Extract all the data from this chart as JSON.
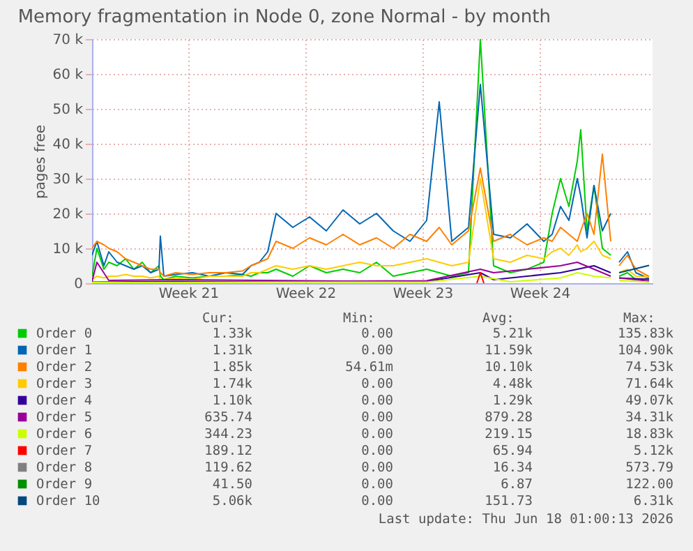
{
  "chart_data": {
    "type": "line",
    "title": "Memory fragmentation in Node 0, zone Normal - by month",
    "ylabel": "pages free",
    "x": [
      "2026-05-15T18:00",
      "2026-05-16T01:00",
      "2026-05-16T11:00",
      "2026-05-16T18:00",
      "2026-05-17T06:00",
      "2026-05-17T18:00",
      "2026-05-18T06:00",
      "2026-05-18T18:00",
      "2026-05-19T06:00",
      "2026-05-19T18:00",
      "2026-05-19T20:00",
      "2026-05-20T01:00",
      "2026-05-20T18:00",
      "2026-05-21T18:00",
      "2026-05-22T18:00",
      "2026-05-23T18:00",
      "2026-05-24T18:00",
      "2026-05-25T06:00",
      "2026-05-25T18:00",
      "2026-05-26T06:00",
      "2026-05-26T18:00",
      "2026-05-27T18:00",
      "2026-05-28T18:00",
      "2026-05-29T18:00",
      "2026-05-30T18:00",
      "2026-05-31T18:00",
      "2026-06-01T18:00",
      "2026-06-02T18:00",
      "2026-06-03T18:00",
      "2026-06-04T18:00",
      "2026-06-05T12:00",
      "2026-06-06T06:00",
      "2026-06-07T06:00",
      "2026-06-07T23:00",
      "2026-06-08T18:00",
      "2026-06-09T18:00",
      "2026-06-10T18:00",
      "2026-06-11T18:00",
      "2026-06-12T06:00",
      "2026-06-12T18:00",
      "2026-06-13T06:00",
      "2026-06-13T18:00",
      "2026-06-13T23:00",
      "2026-06-14T08:00",
      "2026-06-14T18:00",
      "2026-06-15T06:00",
      "2026-06-15T18:00",
      "2026-06-15T23:00",
      "2026-06-16T06:00",
      "2026-06-16T18:00",
      "2026-06-17T06:00",
      "2026-06-18T01:00"
    ],
    "xlim": [
      "2026-05-15T18:00",
      "2026-06-18T06:00"
    ],
    "xticks": [
      {
        "value": "2026-05-21T12:00",
        "label": "Week 21"
      },
      {
        "value": "2026-05-28T12:00",
        "label": "Week 22"
      },
      {
        "value": "2026-06-04T12:00",
        "label": "Week 23"
      },
      {
        "value": "2026-06-11T12:00",
        "label": "Week 24"
      }
    ],
    "ylim": [
      0,
      70000
    ],
    "yticks": [
      0,
      {
        "value": 10000,
        "label": "10 k"
      },
      {
        "value": 20000,
        "label": "20 k"
      },
      {
        "value": 30000,
        "label": "30 k"
      },
      {
        "value": 40000,
        "label": "40 k"
      },
      {
        "value": 50000,
        "label": "50 k"
      },
      {
        "value": 60000,
        "label": "60 k"
      },
      {
        "value": 70000,
        "label": "70 k"
      }
    ],
    "grid": true,
    "legend": "bottom",
    "series": [
      {
        "name": "Order 0",
        "color": "#00cc00",
        "values": [
          2000,
          10000,
          4000,
          6000,
          5000,
          7000,
          4000,
          6000,
          3000,
          5000,
          2000,
          1000,
          2000,
          1500,
          2000,
          2000,
          2500,
          2000,
          3000,
          3000,
          4000,
          2000,
          5000,
          3000,
          4000,
          3000,
          6000,
          2000,
          3000,
          4000,
          3000,
          2000,
          3000,
          70000,
          5000,
          3000,
          4000,
          6000,
          20000,
          30000,
          22000,
          35000,
          44000,
          15000,
          28000,
          10000,
          8000,
          null,
          2000,
          3000,
          1000,
          1300
        ]
      },
      {
        "name": "Order 1",
        "color": "#0066b3",
        "values": [
          8000,
          12000,
          5000,
          9000,
          6000,
          5000,
          4000,
          5000,
          3000,
          4000,
          13500,
          2000,
          2500,
          3000,
          2000,
          3000,
          2500,
          5000,
          6000,
          9000,
          20000,
          16000,
          19000,
          15000,
          21000,
          17000,
          20000,
          15000,
          12000,
          18000,
          52000,
          12000,
          16000,
          57000,
          14000,
          13000,
          17000,
          12000,
          14000,
          22000,
          18000,
          30000,
          25000,
          13000,
          28000,
          15000,
          20000,
          null,
          6000,
          9000,
          3000,
          1300
        ]
      },
      {
        "name": "Order 2",
        "color": "#ff8000",
        "values": [
          10000,
          12000,
          11000,
          10000,
          9000,
          7000,
          6000,
          5000,
          4000,
          4000,
          3000,
          2000,
          3000,
          2500,
          3000,
          3000,
          3500,
          5000,
          6000,
          7000,
          12000,
          10000,
          13000,
          11000,
          14000,
          11000,
          13000,
          10000,
          14000,
          12000,
          16000,
          11000,
          15000,
          33000,
          12000,
          14000,
          11000,
          13000,
          12000,
          16000,
          14000,
          12000,
          15000,
          20000,
          14000,
          37000,
          12000,
          null,
          5000,
          8000,
          4000,
          1900
        ]
      },
      {
        "name": "Order 3",
        "color": "#ffcc00",
        "values": [
          1000,
          2000,
          1500,
          2000,
          2000,
          2500,
          2000,
          2000,
          1500,
          2000,
          1000,
          1000,
          1500,
          1000,
          2000,
          2000,
          2000,
          3000,
          3000,
          4000,
          5000,
          4000,
          5000,
          4000,
          5000,
          6000,
          5000,
          5000,
          6000,
          7000,
          6000,
          5000,
          6000,
          30000,
          7000,
          6000,
          8000,
          7000,
          9000,
          10000,
          8000,
          11000,
          9000,
          10000,
          12000,
          8000,
          7000,
          null,
          3000,
          4000,
          2000,
          1700
        ]
      },
      {
        "name": "Order 4",
        "color": "#330099",
        "x": [
          "2026-05-15T18:00",
          "2026-05-20T18:00",
          "2026-05-25T18:00",
          "2026-05-30T18:00",
          "2026-06-04T18:00",
          "2026-06-07T23:00",
          "2026-06-08T18:00",
          "2026-06-10T18:00",
          "2026-06-12T18:00",
          "2026-06-13T18:00",
          "2026-06-14T18:00",
          "2026-06-15T18:00",
          "2026-06-15T23:00",
          "2026-06-16T06:00",
          "2026-06-18T01:00"
        ],
        "values": [
          300,
          500,
          400,
          600,
          500,
          3000,
          1000,
          2000,
          3000,
          4000,
          5000,
          3000,
          null,
          1500,
          1100
        ]
      },
      {
        "name": "Order 5",
        "color": "#990099",
        "x": [
          "2026-05-15T18:00",
          "2026-05-16T01:00",
          "2026-05-16T18:00",
          "2026-05-20T18:00",
          "2026-05-25T18:00",
          "2026-05-30T18:00",
          "2026-06-04T18:00",
          "2026-06-07T23:00",
          "2026-06-08T18:00",
          "2026-06-10T18:00",
          "2026-06-12T18:00",
          "2026-06-13T18:00",
          "2026-06-14T18:00",
          "2026-06-15T18:00",
          "2026-06-15T23:00",
          "2026-06-16T06:00",
          "2026-06-18T01:00"
        ],
        "values": [
          500,
          6000,
          800,
          1000,
          800,
          600,
          700,
          4000,
          3000,
          4000,
          5000,
          6000,
          4000,
          2000,
          null,
          1500,
          600
        ]
      },
      {
        "name": "Order 6",
        "color": "#ccff00",
        "x": [
          "2026-05-15T18:00",
          "2026-05-20T18:00",
          "2026-05-25T18:00",
          "2026-05-30T18:00",
          "2026-06-04T18:00",
          "2026-06-07T23:00",
          "2026-06-09T18:00",
          "2026-06-12T18:00",
          "2026-06-13T18:00",
          "2026-06-14T18:00",
          "2026-06-15T18:00",
          "2026-06-15T23:00",
          "2026-06-16T06:00",
          "2026-06-18T01:00"
        ],
        "values": [
          200,
          200,
          300,
          300,
          300,
          2000,
          400,
          1500,
          3000,
          2000,
          1500,
          null,
          800,
          300
        ]
      },
      {
        "name": "Order 7",
        "color": "#ff0000",
        "x": [
          "2026-06-07T18:00",
          "2026-06-07T23:00",
          "2026-06-08T04:00"
        ],
        "values": [
          0,
          3000,
          0
        ]
      },
      {
        "name": "Order 8",
        "color": "#808080",
        "values": [
          null,
          null,
          null,
          null,
          null,
          null,
          null,
          null,
          null,
          null,
          null,
          null,
          null,
          null,
          null,
          null,
          null,
          null,
          null,
          null,
          null,
          null,
          null,
          null,
          null,
          null,
          null,
          null,
          null,
          null,
          null,
          null,
          null,
          null,
          null,
          null,
          null,
          null,
          null,
          null,
          null,
          null,
          null,
          null,
          null,
          null,
          null,
          null,
          null,
          null,
          null,
          null
        ]
      },
      {
        "name": "Order 9",
        "color": "#008f00",
        "values": [
          null,
          null,
          null,
          null,
          null,
          null,
          null,
          null,
          null,
          null,
          null,
          null,
          null,
          null,
          null,
          null,
          null,
          null,
          null,
          null,
          null,
          null,
          null,
          null,
          null,
          null,
          null,
          null,
          null,
          null,
          null,
          null,
          null,
          null,
          null,
          null,
          null,
          null,
          null,
          null,
          null,
          null,
          null,
          null,
          null,
          null,
          null,
          null,
          null,
          null,
          null,
          null
        ]
      },
      {
        "name": "Order 10",
        "color": "#00487d",
        "x": [
          "2026-06-16T06:00",
          "2026-06-18T01:00"
        ],
        "values": [
          3000,
          5100
        ]
      }
    ],
    "annotations": [
      "Cur:",
      "Min:",
      "Avg:",
      "Max:",
      "1.33k",
      "0.00",
      "5.21k",
      "135.83k",
      "1.31k",
      "0.00",
      "11.59k",
      "104.90k",
      "1.85k",
      "54.61m",
      "10.10k",
      "74.53k",
      "1.74k",
      "0.00",
      "4.48k",
      "71.64k",
      "1.10k",
      "0.00",
      "1.29k",
      "49.07k",
      "635.74",
      "0.00",
      "879.28",
      "34.31k",
      "344.23",
      "0.00",
      "219.15",
      "18.83k",
      "189.12",
      "0.00",
      "65.94",
      "5.12k",
      "119.62",
      "0.00",
      "16.34",
      "573.79",
      "41.50",
      "0.00",
      "6.87",
      "122.00",
      "5.06k",
      "0.00",
      "151.73",
      "6.31k",
      "Last update: Thu Jun 18 01:00:13 2026"
    ]
  }
}
